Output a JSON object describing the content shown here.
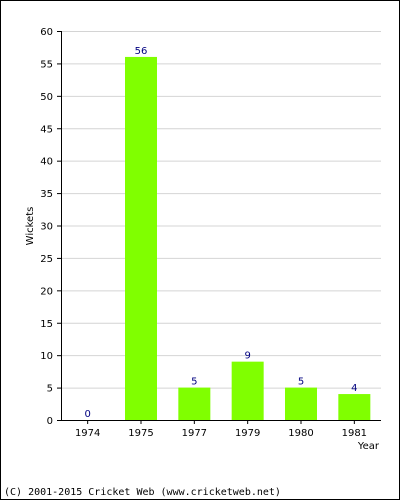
{
  "chart_data": {
    "type": "bar",
    "categories": [
      "1974",
      "1975",
      "1977",
      "1979",
      "1980",
      "1981"
    ],
    "values": [
      0,
      56,
      5,
      9,
      5,
      4
    ],
    "xlabel": "Year",
    "ylabel": "Wickets",
    "ylim": [
      0,
      60
    ],
    "yticks": [
      0,
      5,
      10,
      15,
      20,
      25,
      30,
      35,
      40,
      45,
      50,
      55,
      60
    ],
    "grid": true,
    "bar_color": "#80ff00",
    "label_color": "#000080"
  },
  "footer": "(C) 2001-2015 Cricket Web (www.cricketweb.net)"
}
